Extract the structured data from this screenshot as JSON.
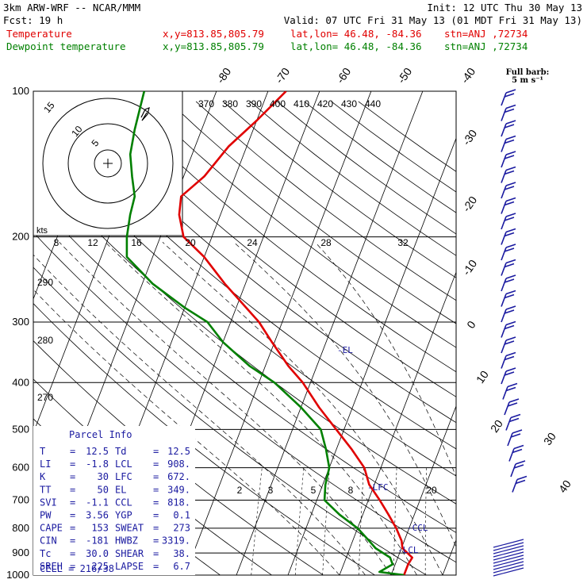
{
  "header": {
    "model": "3km ARW-WRF -- NCAR/MMM",
    "init": "Init: 12 UTC Thu 30 May 13",
    "fcst": "Fcst:    19 h",
    "valid": "Valid: 07 UTC Fri 31 May 13 (01 MDT Fri 31 May 13)",
    "temp_label": "Temperature",
    "dew_label": "Dewpoint temperature",
    "xy": "x,y=813.85,805.79",
    "latlon": "lat,lon= 46.48, -84.36",
    "stn": "stn=ANJ ,72734",
    "barb_legend_1": "Full barb:",
    "barb_legend_2": "5 m s⁻¹"
  },
  "colors": {
    "temperature": "#e00000",
    "dewpoint": "#008000",
    "barbs": "#1a1aa0",
    "grid": "#000000"
  },
  "chart_data": {
    "type": "line",
    "yscale": "log-pressure",
    "ylim": [
      1000,
      100
    ],
    "pressure_ticks": [
      100,
      200,
      300,
      400,
      500,
      600,
      700,
      800,
      900,
      1000
    ],
    "isotherm_labels": [
      -80,
      -70,
      -60,
      -50,
      -40,
      -30,
      -20,
      -10,
      0,
      10,
      20,
      30,
      40
    ],
    "theta_labels": [
      370,
      380,
      390,
      400,
      410,
      420,
      430,
      440
    ],
    "theta_left_labels": [
      290,
      280,
      270
    ],
    "mixing_ratio_labels": [
      2,
      3,
      5,
      8,
      20
    ],
    "hodograph_labels": [
      "5",
      "10",
      "15"
    ],
    "hodo_kts_label": "kts",
    "hodo_speed_ticks": [
      8,
      12,
      16,
      20,
      24,
      28,
      32
    ],
    "levels": [
      "-EL",
      "-LFC",
      "-CCL",
      "-LCL"
    ],
    "series": [
      {
        "name": "Temperature",
        "color": "#e00000",
        "points": [
          [
            1000,
            12.5
          ],
          [
            950,
            12.5
          ],
          [
            920,
            12.8
          ],
          [
            880,
            10.2
          ],
          [
            850,
            9.5
          ],
          [
            800,
            7.5
          ],
          [
            750,
            5.0
          ],
          [
            700,
            2.2
          ],
          [
            650,
            -1.0
          ],
          [
            600,
            -3.2
          ],
          [
            550,
            -7.0
          ],
          [
            500,
            -11.5
          ],
          [
            450,
            -16.5
          ],
          [
            400,
            -21.5
          ],
          [
            370,
            -25.5
          ],
          [
            330,
            -30.5
          ],
          [
            300,
            -34.5
          ],
          [
            250,
            -44.0
          ],
          [
            220,
            -50.0
          ],
          [
            200,
            -55.5
          ],
          [
            180,
            -58.0
          ],
          [
            165,
            -59.0
          ],
          [
            150,
            -56.0
          ],
          [
            130,
            -53.5
          ],
          [
            115,
            -50.0
          ],
          [
            100,
            -46.5
          ]
        ]
      },
      {
        "name": "Dewpoint temperature",
        "color": "#008000",
        "points": [
          [
            1000,
            12.5
          ],
          [
            985,
            7.5
          ],
          [
            950,
            9.5
          ],
          [
            920,
            8.5
          ],
          [
            880,
            5.0
          ],
          [
            850,
            3.2
          ],
          [
            800,
            0.0
          ],
          [
            750,
            -4.5
          ],
          [
            700,
            -8.5
          ],
          [
            650,
            -9.5
          ],
          [
            600,
            -10.0
          ],
          [
            550,
            -12.0
          ],
          [
            500,
            -14.5
          ],
          [
            450,
            -20.0
          ],
          [
            400,
            -27.0
          ],
          [
            370,
            -33.0
          ],
          [
            330,
            -40.0
          ],
          [
            300,
            -44.5
          ],
          [
            280,
            -50.0
          ],
          [
            250,
            -58.0
          ],
          [
            220,
            -65.0
          ],
          [
            200,
            -66.5
          ],
          [
            180,
            -67.5
          ],
          [
            165,
            -68.0
          ],
          [
            150,
            -70.0
          ],
          [
            135,
            -72.0
          ],
          [
            120,
            -73.0
          ],
          [
            100,
            -74.0
          ]
        ]
      }
    ]
  },
  "parcel_info": {
    "title": "Parcel Info",
    "rows": [
      {
        "l1": "T",
        "v1": "12.5",
        "l2": "Td",
        "v2": "12.5"
      },
      {
        "l1": "LI",
        "v1": "-1.8",
        "l2": "LCL",
        "v2": "908."
      },
      {
        "l1": "K",
        "v1": "30",
        "l2": "LFC",
        "v2": "672."
      },
      {
        "l1": "TT",
        "v1": "50",
        "l2": "EL",
        "v2": "349."
      },
      {
        "l1": "SVI",
        "v1": "-1.1",
        "l2": "CCL",
        "v2": "818."
      },
      {
        "l1": "PW",
        "v1": "3.56",
        "l2": "YGP",
        "v2": "0.1"
      },
      {
        "l1": "CAPE",
        "v1": "153",
        "l2": "SWEAT",
        "v2": "273"
      },
      {
        "l1": "CIN",
        "v1": "-181",
        "l2": "HWBZ",
        "v2": "3319."
      },
      {
        "l1": "Tc",
        "v1": "30.0",
        "l2": "SHEAR",
        "v2": "38."
      },
      {
        "l1": "SREH",
        "v1": "225",
        "l2": "LAPSE",
        "v2": "6.7"
      }
    ],
    "cell": "CELL = 216/38"
  }
}
